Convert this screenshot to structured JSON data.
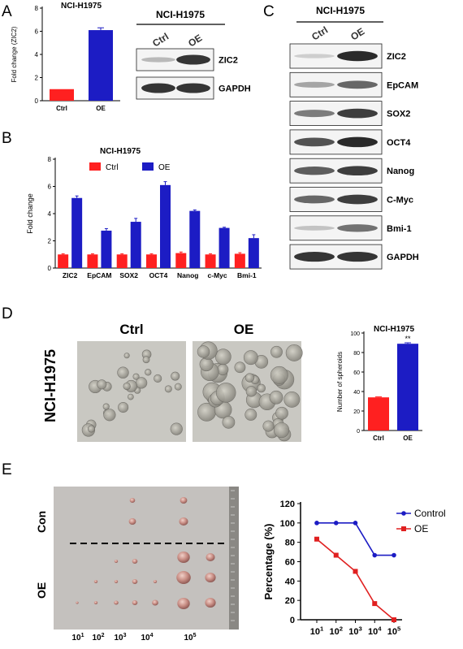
{
  "panels": {
    "A": {
      "letter": "A",
      "title": "NCI-H1975",
      "chart_data": {
        "type": "bar",
        "title": "NCI-H1975",
        "categories": [
          "Ctrl",
          "OE"
        ],
        "values": [
          1.0,
          6.1
        ],
        "errors": [
          0.0,
          0.2
        ],
        "colors": [
          "#ff2020",
          "#1c1cc4"
        ],
        "ylabel": "Fold change (ZIC2)",
        "ylim": [
          0,
          8
        ],
        "yticks": [
          0,
          2,
          4,
          6,
          8
        ]
      },
      "blot": {
        "cell_line": "NCI-H1975",
        "lanes": [
          "Ctrl",
          "OE"
        ],
        "bands": [
          {
            "name": "ZIC2",
            "intensity": [
              0.25,
              0.9
            ]
          },
          {
            "name": "GAPDH",
            "intensity": [
              0.9,
              0.9
            ]
          }
        ]
      }
    },
    "B": {
      "letter": "B",
      "chart_data": {
        "type": "bar",
        "title": "NCI-H1975",
        "categories": [
          "ZIC2",
          "EpCAM",
          "SOX2",
          "OCT4",
          "Nanog",
          "c-Myc",
          "Bmi-1"
        ],
        "series": [
          {
            "name": "Ctrl",
            "color": "#ff2020",
            "values": [
              1.0,
              1.0,
              1.0,
              1.0,
              1.1,
              1.0,
              1.05
            ],
            "errors": [
              0.05,
              0.05,
              0.05,
              0.05,
              0.08,
              0.05,
              0.08
            ]
          },
          {
            "name": "OE",
            "color": "#1c1cc4",
            "values": [
              5.15,
              2.75,
              3.4,
              6.1,
              4.2,
              2.95,
              2.2
            ],
            "errors": [
              0.15,
              0.15,
              0.25,
              0.25,
              0.07,
              0.05,
              0.25
            ]
          }
        ],
        "ylabel": "Fold change",
        "ylim": [
          0,
          8
        ],
        "yticks": [
          0,
          2,
          4,
          6,
          8
        ],
        "legend": "top"
      }
    },
    "C": {
      "letter": "C",
      "blot": {
        "cell_line": "NCI-H1975",
        "lanes": [
          "Ctrl",
          "OE"
        ],
        "bands": [
          {
            "name": "ZIC2",
            "intensity": [
              0.15,
              0.95
            ]
          },
          {
            "name": "EpCAM",
            "intensity": [
              0.35,
              0.65
            ]
          },
          {
            "name": "SOX2",
            "intensity": [
              0.55,
              0.85
            ]
          },
          {
            "name": "OCT4",
            "intensity": [
              0.75,
              0.95
            ]
          },
          {
            "name": "Nanog",
            "intensity": [
              0.7,
              0.85
            ]
          },
          {
            "name": "C-Myc",
            "intensity": [
              0.65,
              0.85
            ]
          },
          {
            "name": "Bmi-1",
            "intensity": [
              0.2,
              0.6
            ]
          },
          {
            "name": "GAPDH",
            "intensity": [
              0.9,
              0.9
            ]
          }
        ]
      }
    },
    "D": {
      "letter": "D",
      "side_label": "NCI-H1975",
      "image_labels": [
        "Ctrl",
        "OE"
      ],
      "chart_data": {
        "type": "bar",
        "title": "NCI-H1975",
        "categories": [
          "Ctrl",
          "OE"
        ],
        "values": [
          34,
          89
        ],
        "errors": [
          0.5,
          1.0
        ],
        "colors": [
          "#ff2020",
          "#1c1cc4"
        ],
        "ylabel": "Number of spheroids",
        "ylim": [
          0,
          100
        ],
        "yticks": [
          0,
          20,
          40,
          60,
          80,
          100
        ],
        "annotation": "**"
      }
    },
    "E": {
      "letter": "E",
      "photo": {
        "row_labels": [
          "Con",
          "OE"
        ],
        "dose_labels": [
          {
            "base": "10",
            "exp": "1"
          },
          {
            "base": "10",
            "exp": "2"
          },
          {
            "base": "10",
            "exp": "3"
          },
          {
            "base": "10",
            "exp": "4"
          },
          {
            "base": "10",
            "exp": "5"
          }
        ]
      },
      "chart_data": {
        "type": "line",
        "x": [
          "10^1",
          "10^2",
          "10^3",
          "10^4",
          "10^5"
        ],
        "x_labels": [
          {
            "base": "10",
            "exp": "1"
          },
          {
            "base": "10",
            "exp": "2"
          },
          {
            "base": "10",
            "exp": "3"
          },
          {
            "base": "10",
            "exp": "4"
          },
          {
            "base": "10",
            "exp": "5"
          }
        ],
        "series": [
          {
            "name": "Control",
            "color": "#1c1cc4",
            "marker": "circle",
            "values": [
              100,
              100,
              100,
              66.7,
              66.7
            ]
          },
          {
            "name": "OE",
            "color": "#e02020",
            "marker": "square",
            "values": [
              83.3,
              66.7,
              50,
              16.7,
              0
            ]
          }
        ],
        "ylabel": "Percentage (%)",
        "ylim": [
          0,
          120
        ],
        "yticks": [
          0,
          20,
          40,
          60,
          80,
          100,
          120
        ],
        "legend": "top-right"
      }
    }
  }
}
